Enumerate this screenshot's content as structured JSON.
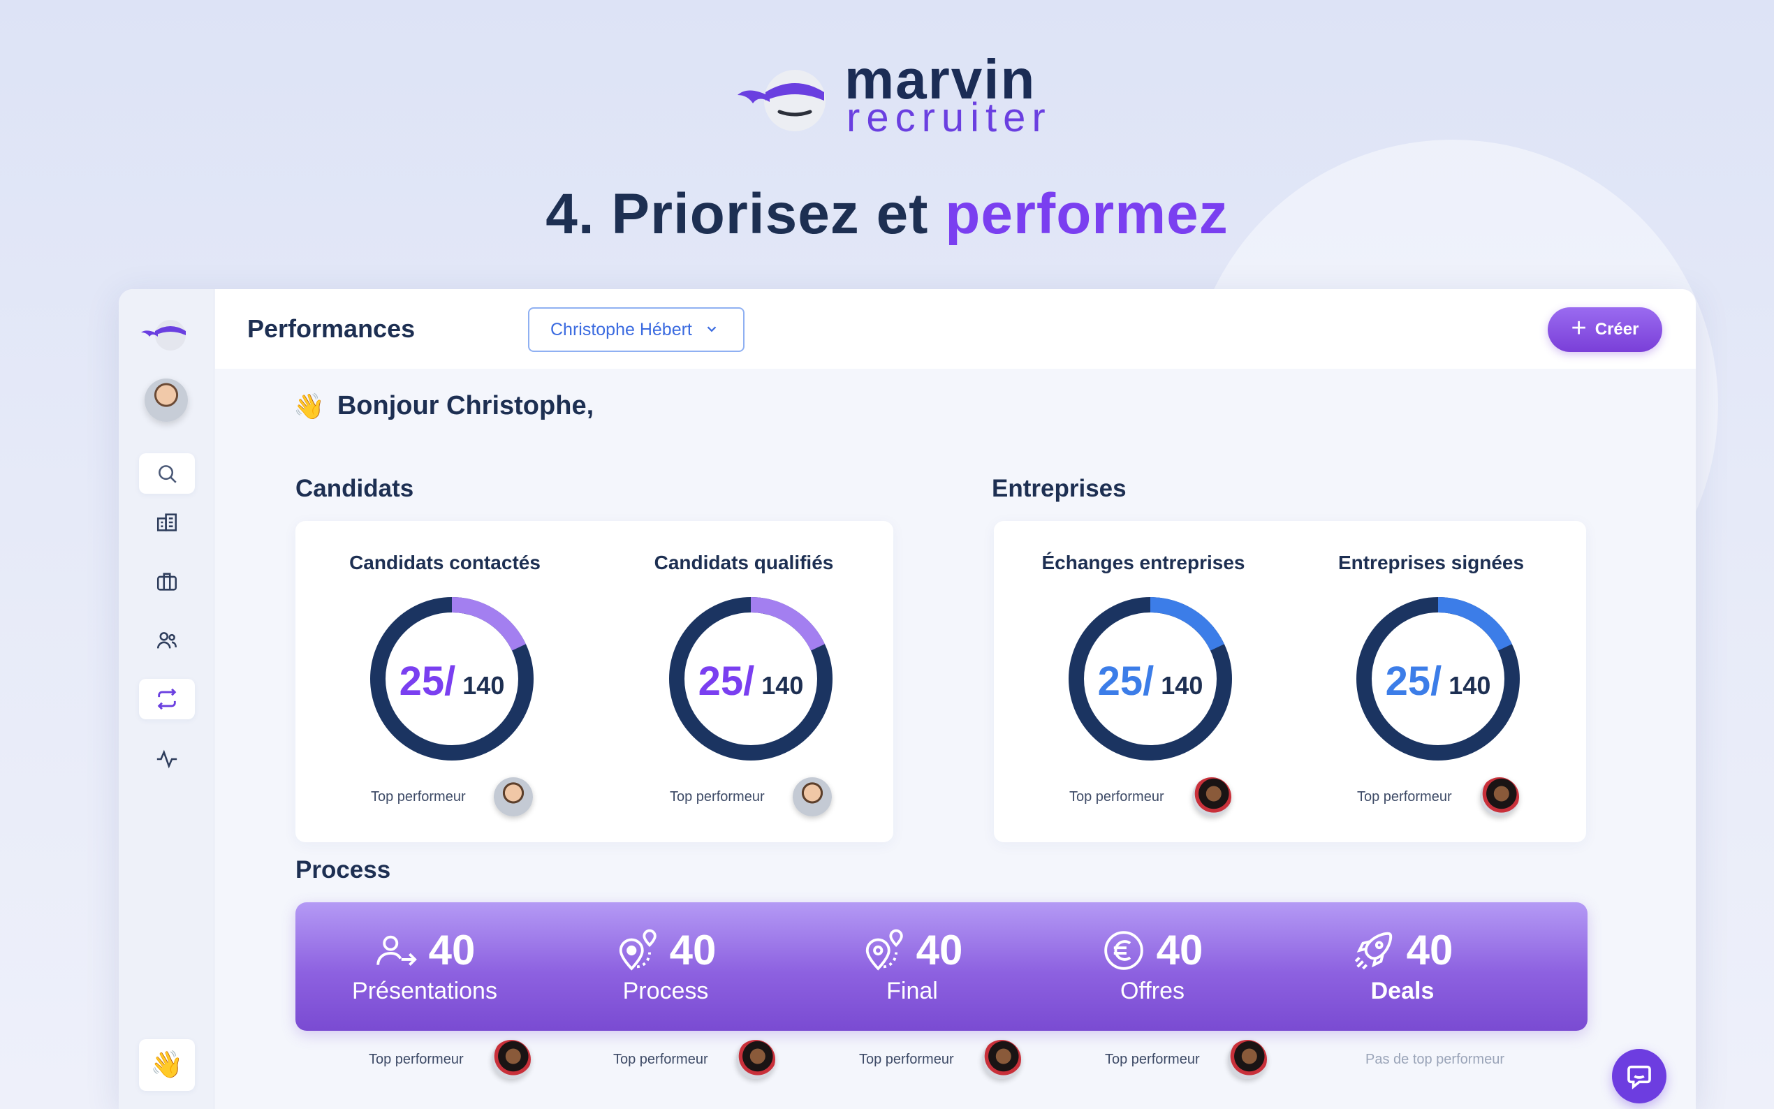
{
  "brand": {
    "name": "marvin",
    "subtitle": "recruiter"
  },
  "headline": {
    "prefix": "4. Priorisez et",
    "accent": "performez"
  },
  "colors": {
    "purple": "#7a3ff0",
    "navy": "#1d2f52",
    "blue": "#3b6be0",
    "donut_track": "#1b3461",
    "donut_purple": "#a37ff0",
    "donut_blue": "#3c7de8"
  },
  "sidebar": {
    "items": [
      "logo",
      "avatar",
      "search-icon",
      "building-icon",
      "briefcase-icon",
      "users-icon",
      "repeat-icon",
      "activity-icon"
    ],
    "bottom_emoji": "👋"
  },
  "topbar": {
    "title": "Performances",
    "select_value": "Christophe Hébert",
    "create_label": "Créer"
  },
  "greeting": {
    "emoji": "👋",
    "text": "Bonjour Christophe,"
  },
  "candidats": {
    "title": "Candidats",
    "metrics": [
      {
        "title": "Candidats contactés",
        "value": "25/",
        "total": "140",
        "progress": 0.18,
        "top_label": "Top performeur"
      },
      {
        "title": "Candidats qualifiés",
        "value": "25/",
        "total": "140",
        "progress": 0.18,
        "top_label": "Top performeur"
      }
    ]
  },
  "entreprises": {
    "title": "Entreprises",
    "metrics": [
      {
        "title": "Échanges entreprises",
        "value": "25/",
        "total": "140",
        "progress": 0.18,
        "top_label": "Top performeur"
      },
      {
        "title": "Entreprises signées",
        "value": "25/",
        "total": "140",
        "progress": 0.18,
        "top_label": "Top performeur"
      }
    ]
  },
  "process": {
    "title": "Process",
    "items": [
      {
        "icon": "user-arrow-icon",
        "value": "40",
        "label": "Présentations",
        "top_label": "Top performeur"
      },
      {
        "icon": "pin-route-icon",
        "value": "40",
        "label": "Process",
        "top_label": "Top performeur"
      },
      {
        "icon": "pin-route-icon",
        "value": "40",
        "label": "Final",
        "top_label": "Top performeur"
      },
      {
        "icon": "euro-icon",
        "value": "40",
        "label": "Offres",
        "top_label": "Top performeur"
      },
      {
        "icon": "rocket-icon",
        "value": "40",
        "label": "Deals",
        "top_label": "Pas de top performeur"
      }
    ]
  }
}
